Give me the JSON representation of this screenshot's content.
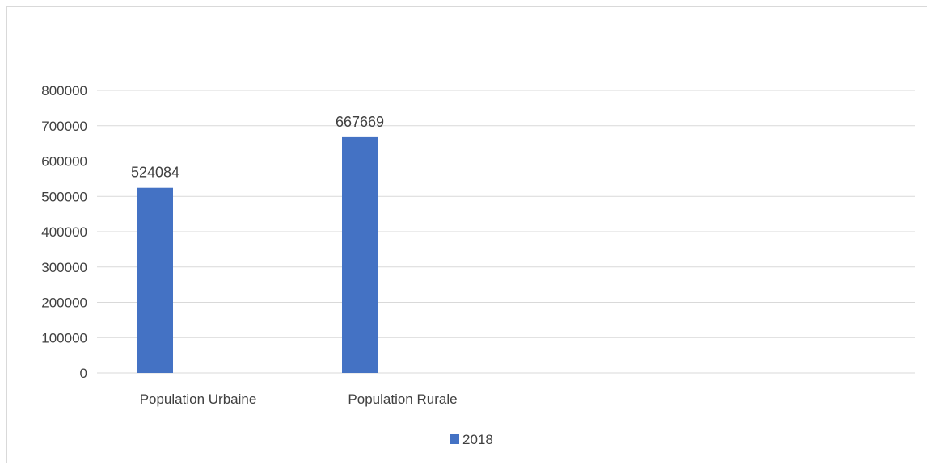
{
  "chart_data": {
    "type": "bar",
    "title": "",
    "xlabel": "",
    "ylabel": "",
    "categories": [
      "Population Urbaine",
      "Population Rurale"
    ],
    "series": [
      {
        "name": "2018",
        "values": [
          524084,
          667669
        ],
        "color": "#4472c4"
      }
    ],
    "data_labels": [
      "524084",
      "667669"
    ],
    "ylim": [
      0,
      800000
    ],
    "yticks": [
      0,
      100000,
      200000,
      300000,
      400000,
      500000,
      600000,
      700000,
      800000
    ],
    "ytick_labels": [
      "0",
      "100000",
      "200000",
      "300000",
      "400000",
      "500000",
      "600000",
      "700000",
      "800000"
    ],
    "grid": true,
    "gridline_color": "#d9d9d9",
    "legend_position": "bottom"
  }
}
